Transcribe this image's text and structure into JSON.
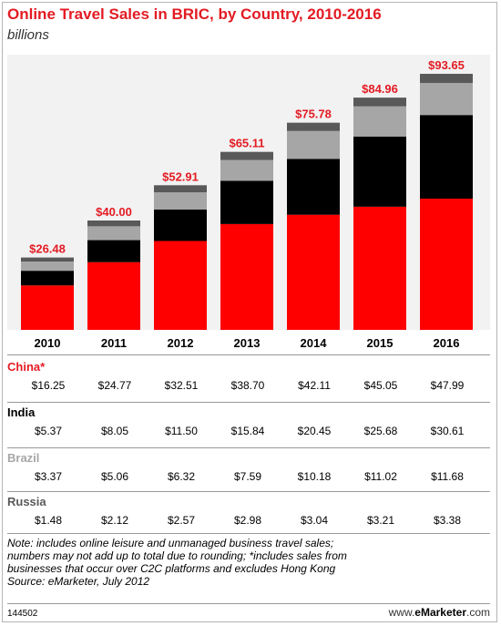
{
  "header": {
    "title": "Online Travel Sales in BRIC, by Country, 2010-2016",
    "subtitle": "billions"
  },
  "chart_data": {
    "type": "bar",
    "stacked": true,
    "categories": [
      "2010",
      "2011",
      "2012",
      "2013",
      "2014",
      "2015",
      "2016"
    ],
    "totals": [
      26.48,
      40.0,
      52.91,
      65.11,
      75.78,
      84.96,
      93.65
    ],
    "total_labels": [
      "$26.48",
      "$40.00",
      "$52.91",
      "$65.11",
      "$75.78",
      "$84.96",
      "$93.65"
    ],
    "series": [
      {
        "name": "China*",
        "color": "#ff0000",
        "values": [
          16.25,
          24.77,
          32.51,
          38.7,
          42.11,
          45.05,
          47.99
        ]
      },
      {
        "name": "India",
        "color": "#000000",
        "values": [
          5.37,
          8.05,
          11.5,
          15.84,
          20.45,
          25.68,
          30.61
        ]
      },
      {
        "name": "Brazil",
        "color": "#a6a6a6",
        "values": [
          3.37,
          5.06,
          6.32,
          7.59,
          10.18,
          11.02,
          11.68
        ]
      },
      {
        "name": "Russia",
        "color": "#595959",
        "values": [
          1.48,
          2.12,
          2.57,
          2.98,
          3.04,
          3.21,
          3.38
        ]
      }
    ],
    "ylim": [
      0,
      100
    ],
    "grid": false,
    "label_color": "#e31b23"
  },
  "table": {
    "rows": [
      {
        "country": "China*",
        "color": "#e31b23",
        "values": [
          "$16.25",
          "$24.77",
          "$32.51",
          "$38.70",
          "$42.11",
          "$45.05",
          "$47.99"
        ]
      },
      {
        "country": "India",
        "color": "#000000",
        "values": [
          "$5.37",
          "$8.05",
          "$11.50",
          "$15.84",
          "$20.45",
          "$25.68",
          "$30.61"
        ]
      },
      {
        "country": "Brazil",
        "color": "#a6a6a6",
        "values": [
          "$3.37",
          "$5.06",
          "$6.32",
          "$7.59",
          "$10.18",
          "$11.02",
          "$11.68"
        ]
      },
      {
        "country": "Russia",
        "color": "#595959",
        "values": [
          "$1.48",
          "$2.12",
          "$2.57",
          "$2.98",
          "$3.04",
          "$3.21",
          "$3.38"
        ]
      }
    ]
  },
  "note": {
    "line1": "Note: includes online leisure and unmanaged business travel sales;",
    "line2": "numbers may not add up to total due to rounding; *includes sales from",
    "line3": "businesses that occur over C2C platforms and excludes Hong Kong",
    "line4": "Source: eMarketer, July 2012"
  },
  "footer": {
    "id": "144502",
    "brand_prefix": "www.",
    "brand_name": "eMarketer",
    "brand_suffix": ".com"
  }
}
